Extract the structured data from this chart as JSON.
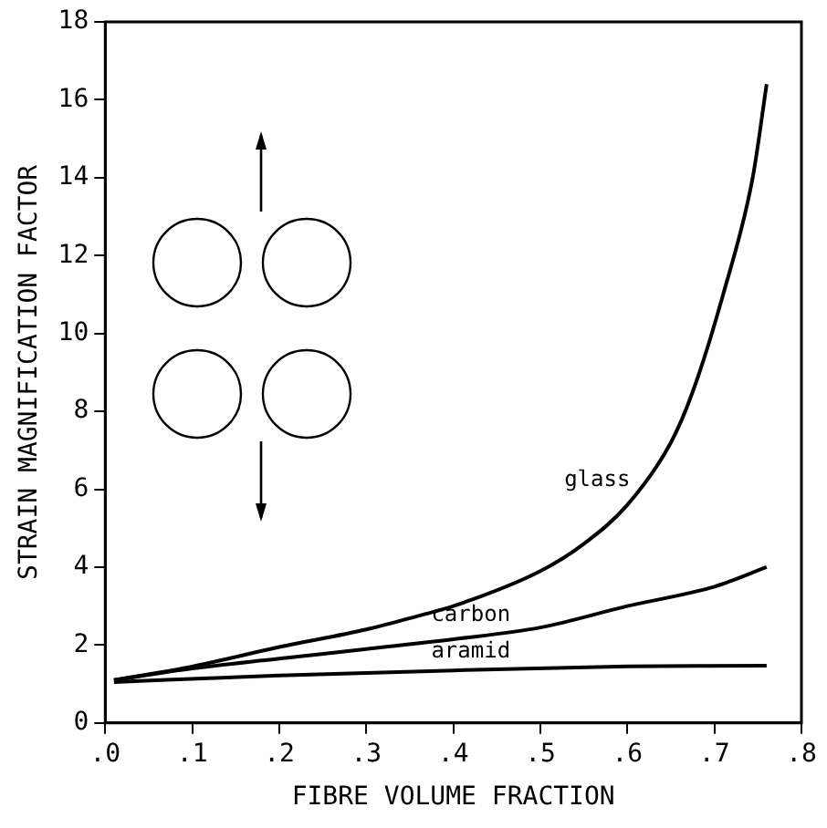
{
  "chart_data": {
    "type": "line",
    "xlabel": "FIBRE VOLUME FRACTION",
    "ylabel": "STRAIN MAGNIFICATION FACTOR",
    "series": [
      {
        "name": "glass",
        "color": "#000000",
        "x": [
          0.01,
          0.1,
          0.2,
          0.3,
          0.36,
          0.4,
          0.5,
          0.55,
          0.6,
          0.65,
          0.675,
          0.71,
          0.744,
          0.76
        ],
        "values": [
          1.1,
          1.45,
          1.95,
          2.4,
          2.75,
          3.0,
          3.9,
          4.6,
          5.6,
          7.2,
          8.5,
          11,
          14,
          16.4
        ]
      },
      {
        "name": "carbon",
        "color": "#000000",
        "x": [
          0.01,
          0.1,
          0.2,
          0.3,
          0.4,
          0.5,
          0.6,
          0.7,
          0.76
        ],
        "values": [
          1.1,
          1.4,
          1.65,
          1.9,
          2.15,
          2.45,
          3.0,
          3.5,
          4.0
        ]
      },
      {
        "name": "aramid",
        "color": "#000000",
        "x": [
          0.01,
          0.2,
          0.4,
          0.6,
          0.76
        ],
        "values": [
          1.05,
          1.22,
          1.35,
          1.45,
          1.47
        ]
      }
    ],
    "xlim": [
      0,
      0.8
    ],
    "xticks": [
      {
        "value": 0,
        "label": ".0"
      },
      {
        "value": 0.1,
        "label": ".1"
      },
      {
        "value": 0.2,
        "label": ".2"
      },
      {
        "value": 0.3,
        "label": ".3"
      },
      {
        "value": 0.4,
        "label": ".4"
      },
      {
        "value": 0.5,
        "label": ".5"
      },
      {
        "value": 0.6,
        "label": ".6"
      },
      {
        "value": 0.7,
        "label": ".7"
      },
      {
        "value": 0.8,
        "label": ".8"
      }
    ],
    "ylim": [
      0,
      18
    ],
    "yticks": [
      0,
      2,
      4,
      6,
      8,
      10,
      12,
      14,
      16,
      18
    ],
    "grid": false,
    "legend": false,
    "marker": "none",
    "line_style": "solid"
  }
}
